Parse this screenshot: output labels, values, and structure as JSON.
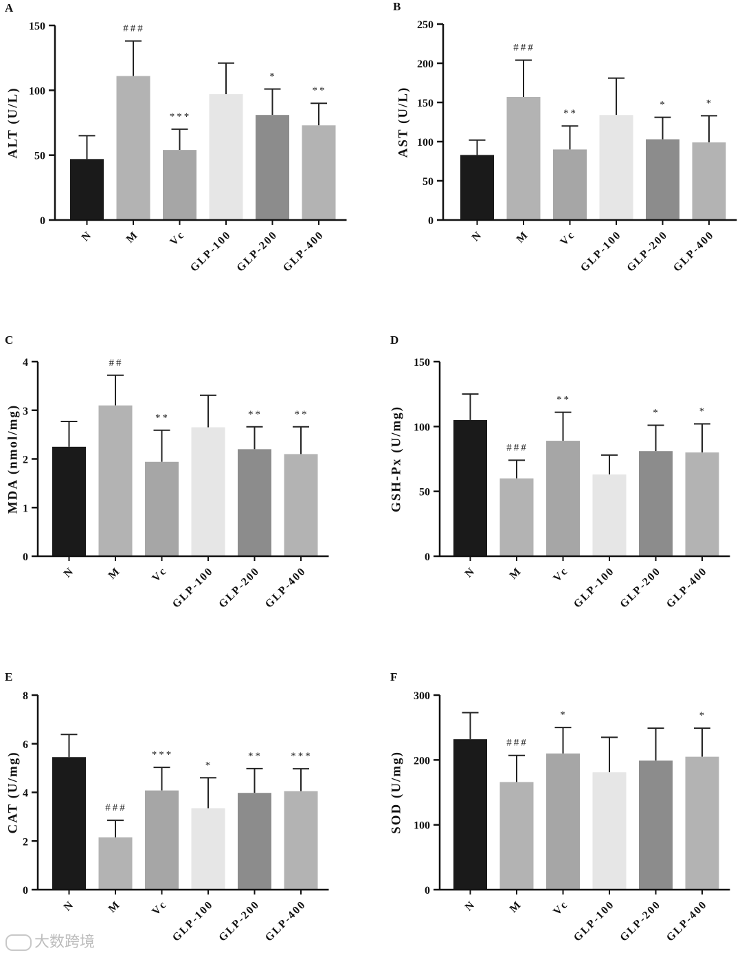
{
  "watermark": "大数跨境",
  "colors": [
    "#1a1a1a",
    "#b3b3b3",
    "#a6a6a6",
    "#e6e6e6",
    "#8c8c8c",
    "#b3b3b3"
  ],
  "chart_data": [
    {
      "type": "bar",
      "panel": "A",
      "ylabel": "ALT (U/L)",
      "categories": [
        "N",
        "M",
        "Vc",
        "GLP-100",
        "GLP-200",
        "GLP-400"
      ],
      "values": [
        47,
        111,
        54,
        97,
        81,
        73
      ],
      "errors": [
        18,
        27,
        16,
        24,
        20,
        17
      ],
      "significance": [
        "",
        "###",
        "***",
        "",
        "*",
        "**"
      ],
      "ylim": [
        0,
        150
      ],
      "yticks": [
        0,
        50,
        100,
        150
      ]
    },
    {
      "type": "bar",
      "panel": "B",
      "ylabel": "AST (U/L)",
      "categories": [
        "N",
        "M",
        "Vc",
        "GLP-100",
        "GLP-200",
        "GLP-400"
      ],
      "values": [
        83,
        157,
        90,
        134,
        103,
        99
      ],
      "errors": [
        19,
        47,
        30,
        47,
        28,
        34
      ],
      "significance": [
        "",
        "###",
        "**",
        "",
        "*",
        "*"
      ],
      "ylim": [
        0,
        250
      ],
      "yticks": [
        0,
        50,
        100,
        150,
        200,
        250
      ]
    },
    {
      "type": "bar",
      "panel": "C",
      "ylabel": "MDA (nmol/mg)",
      "categories": [
        "N",
        "M",
        "Vc",
        "GLP-100",
        "GLP-200",
        "GLP-400"
      ],
      "values": [
        2.25,
        3.1,
        1.94,
        2.65,
        2.2,
        2.1
      ],
      "errors": [
        0.52,
        0.62,
        0.65,
        0.66,
        0.46,
        0.56
      ],
      "significance": [
        "",
        "##",
        "**",
        "",
        "**",
        "**"
      ],
      "ylim": [
        0,
        4
      ],
      "yticks": [
        0,
        1,
        2,
        3,
        4
      ]
    },
    {
      "type": "bar",
      "panel": "D",
      "ylabel": "GSH-Px (U/mg)",
      "categories": [
        "N",
        "M",
        "Vc",
        "GLP-100",
        "GLP-200",
        "GLP-400"
      ],
      "values": [
        105,
        60,
        89,
        63,
        81,
        80
      ],
      "errors": [
        20,
        14,
        22,
        15,
        20,
        22
      ],
      "significance": [
        "",
        "###",
        "**",
        "",
        "*",
        "*"
      ],
      "ylim": [
        0,
        150
      ],
      "yticks": [
        0,
        50,
        100,
        150
      ]
    },
    {
      "type": "bar",
      "panel": "E",
      "ylabel": "CAT (U/mg)",
      "categories": [
        "N",
        "M",
        "Vc",
        "GLP-100",
        "GLP-200",
        "GLP-400"
      ],
      "values": [
        5.45,
        2.15,
        4.08,
        3.35,
        3.98,
        4.05
      ],
      "errors": [
        0.93,
        0.7,
        0.95,
        1.25,
        1.0,
        0.92
      ],
      "significance": [
        "",
        "###",
        "***",
        "*",
        "**",
        "***"
      ],
      "ylim": [
        0,
        8
      ],
      "yticks": [
        0,
        2,
        4,
        6,
        8
      ]
    },
    {
      "type": "bar",
      "panel": "F",
      "ylabel": "SOD (U/mg)",
      "categories": [
        "N",
        "M",
        "Vc",
        "GLP-100",
        "GLP-200",
        "GLP-400"
      ],
      "values": [
        232,
        166,
        210,
        181,
        199,
        205
      ],
      "errors": [
        41,
        41,
        40,
        54,
        50,
        44
      ],
      "significance": [
        "",
        "###",
        "*",
        "",
        "",
        "*"
      ],
      "ylim": [
        0,
        300
      ],
      "yticks": [
        0,
        100,
        200,
        300
      ]
    }
  ]
}
